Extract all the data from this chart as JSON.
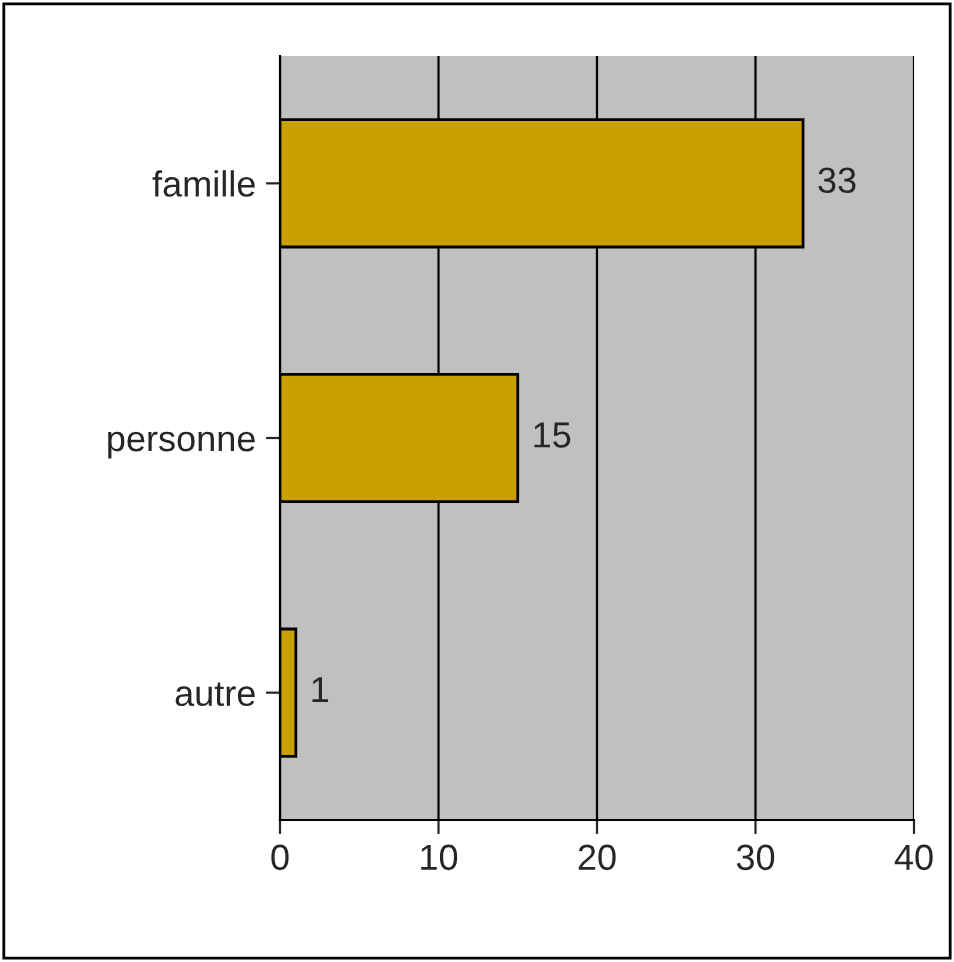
{
  "chart_data": {
    "type": "bar",
    "orientation": "horizontal",
    "categories": [
      "famille",
      "personne",
      "autre"
    ],
    "values": [
      33,
      15,
      1
    ],
    "color": "#c9a000",
    "xlim": [
      0,
      40
    ],
    "xticks": [
      0,
      10,
      20,
      30,
      40
    ],
    "grid": "x",
    "data_labels": true
  }
}
